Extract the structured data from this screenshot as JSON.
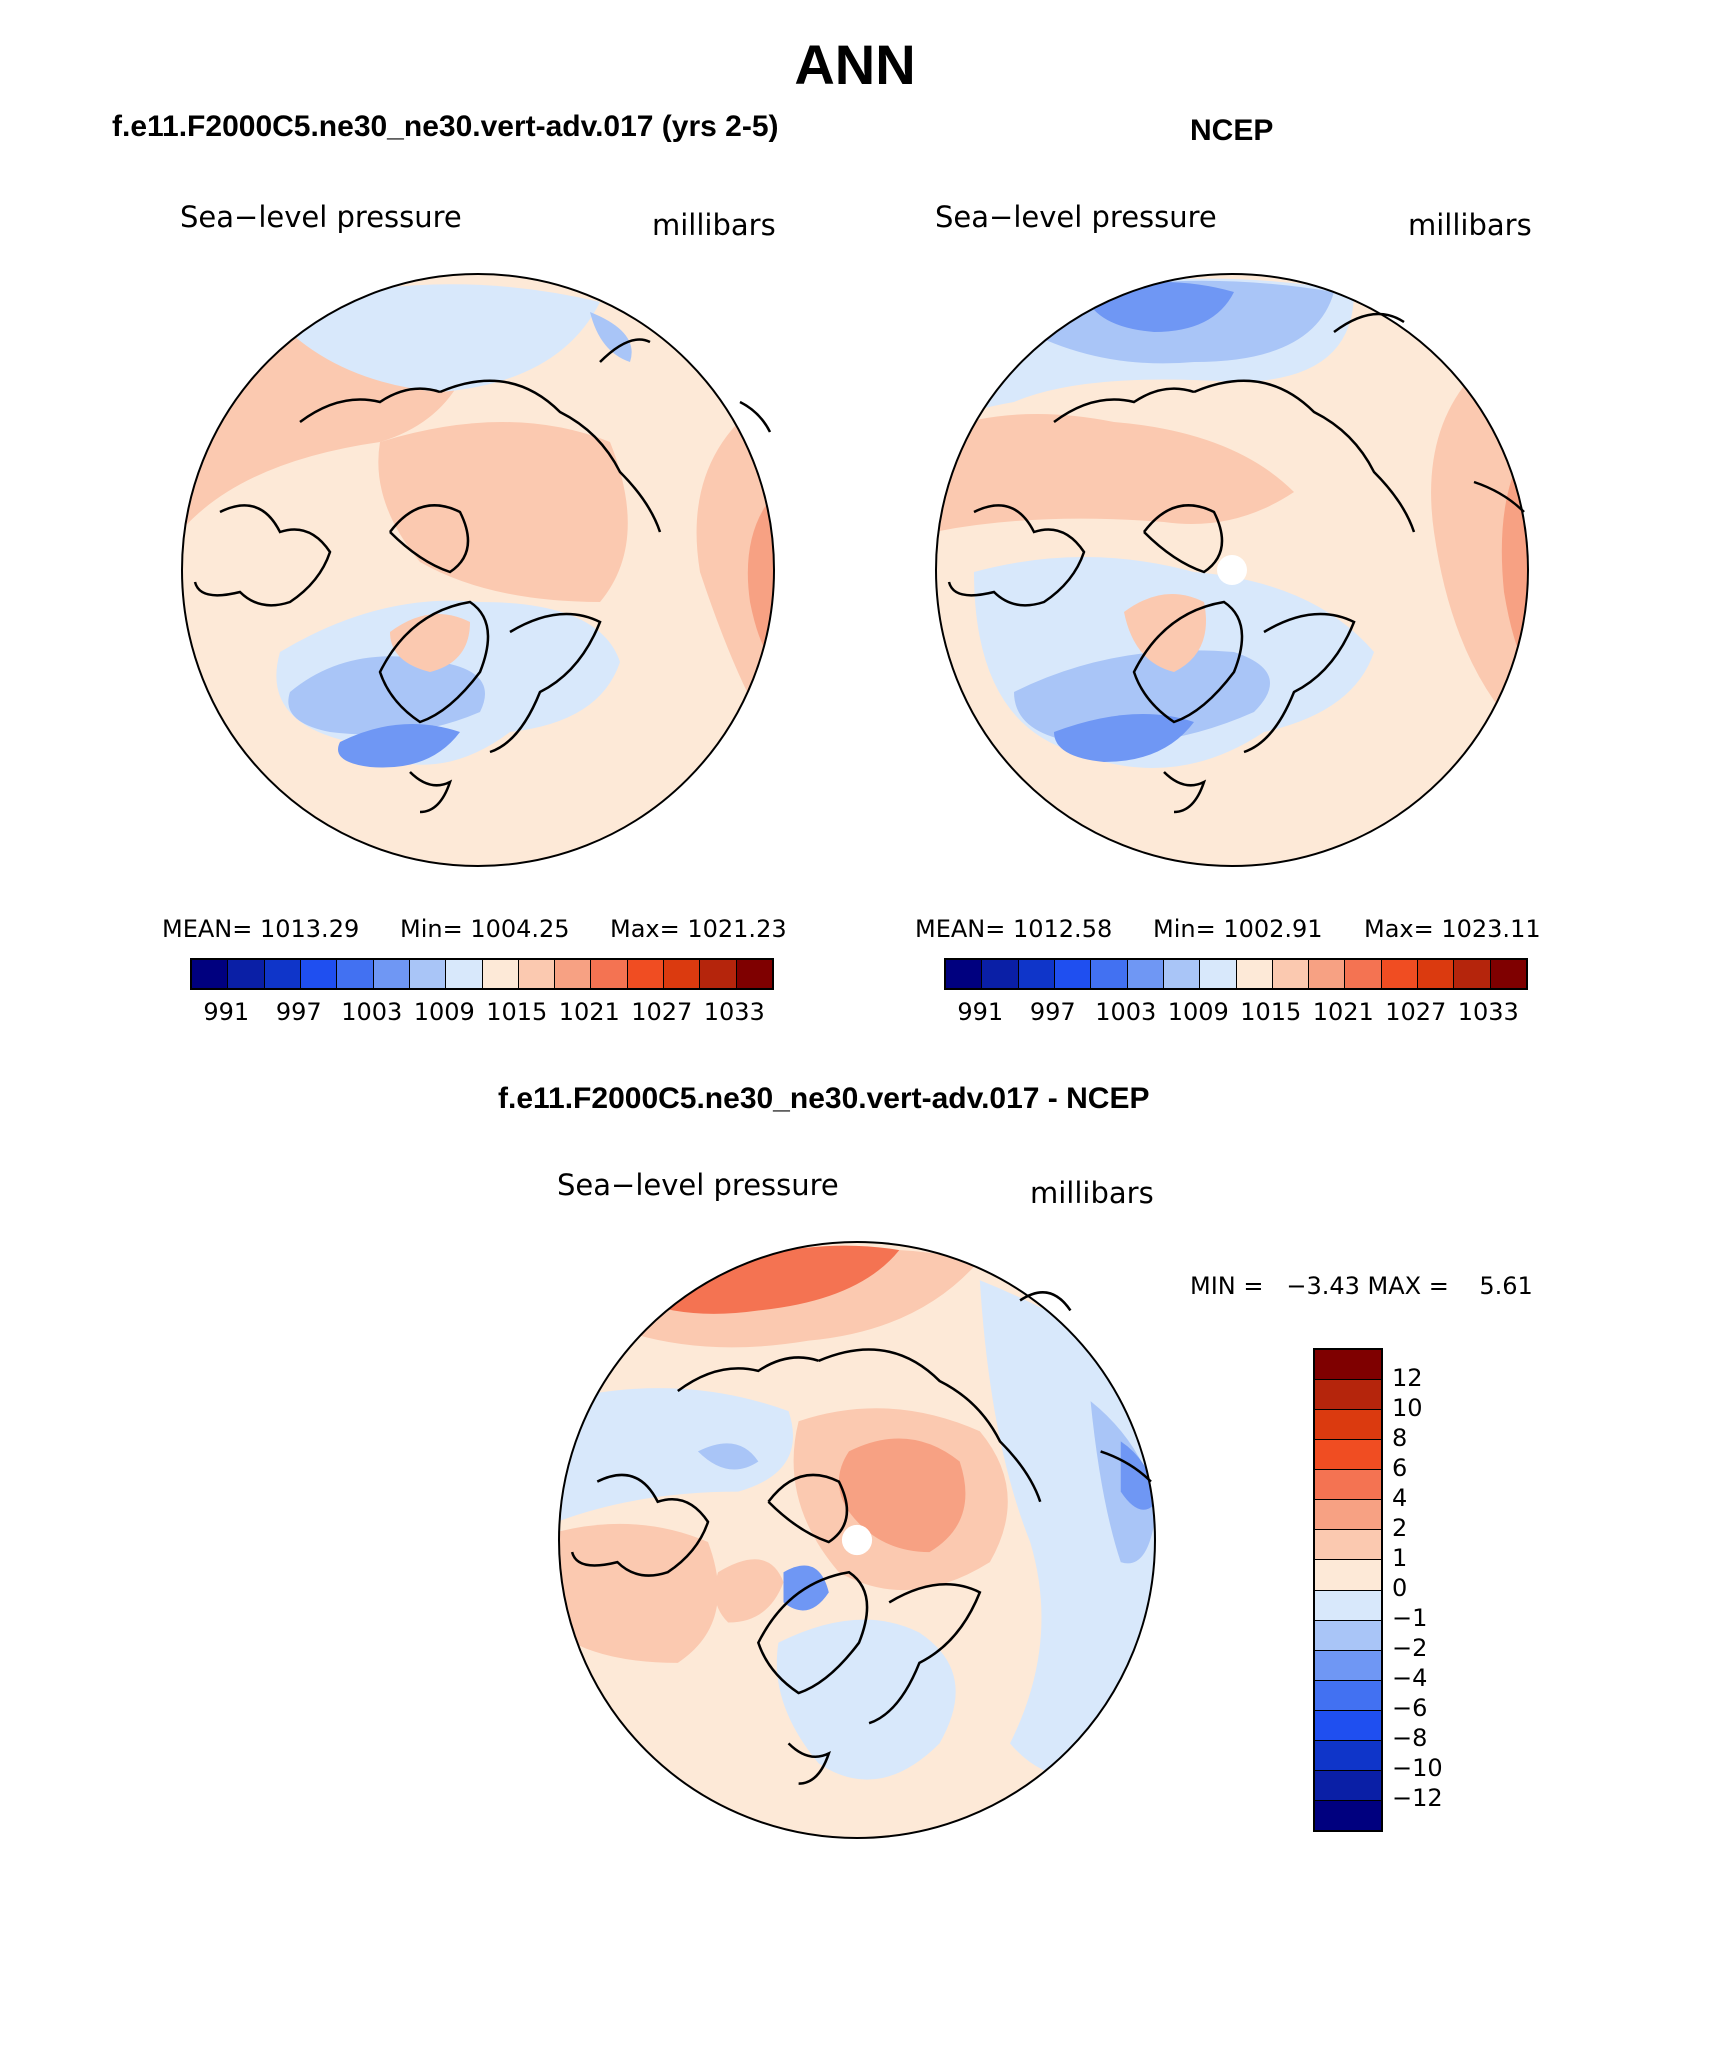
{
  "page_title": "ANN",
  "panels": {
    "model": {
      "title": "f.e11.F2000C5.ne30_ne30.vert-adv.017 (yrs 2-5)",
      "left_label": "Sea−level pressure",
      "right_label": "millibars",
      "mean": "MEAN= 1013.29",
      "min": "Min= 1004.25",
      "max": "Max= 1021.23"
    },
    "obs": {
      "title": "NCEP",
      "left_label": "Sea−level pressure",
      "right_label": "millibars",
      "mean": "MEAN= 1012.58",
      "min": "Min= 1002.91",
      "max": "Max= 1023.11"
    },
    "diff": {
      "title": "f.e11.F2000C5.ne30_ne30.vert-adv.017 - NCEP",
      "left_label": "Sea−level pressure",
      "right_label": "millibars",
      "minmax": "MIN =   −3.43 MAX =    5.61"
    }
  },
  "abs_colorbar": {
    "colors": [
      "#00007f",
      "#0a1fa6",
      "#0f35c9",
      "#1f4ff0",
      "#4271f2",
      "#6f97f4",
      "#a9c5f7",
      "#d8e8fb",
      "#fde9d7",
      "#fbc9b0",
      "#f7a183",
      "#f47352",
      "#f04d22",
      "#db3a0f",
      "#b5250c",
      "#7f0000"
    ],
    "ticks": [
      "991",
      "997",
      "1003",
      "1009",
      "1015",
      "1021",
      "1027",
      "1033"
    ]
  },
  "diff_colorbar": {
    "colors": [
      "#7f0000",
      "#b5250c",
      "#db3a0f",
      "#f04d22",
      "#f47352",
      "#f7a183",
      "#fbc9b0",
      "#fde9d7",
      "#d8e8fb",
      "#a9c5f7",
      "#6f97f4",
      "#4271f2",
      "#1f4ff0",
      "#0f35c9",
      "#0a1fa6",
      "#00007f"
    ],
    "ticks": [
      "12",
      "10",
      "8",
      "6",
      "4",
      "2",
      "1",
      "0",
      "−1",
      "−2",
      "−4",
      "−6",
      "−8",
      "−10",
      "−12"
    ]
  }
}
